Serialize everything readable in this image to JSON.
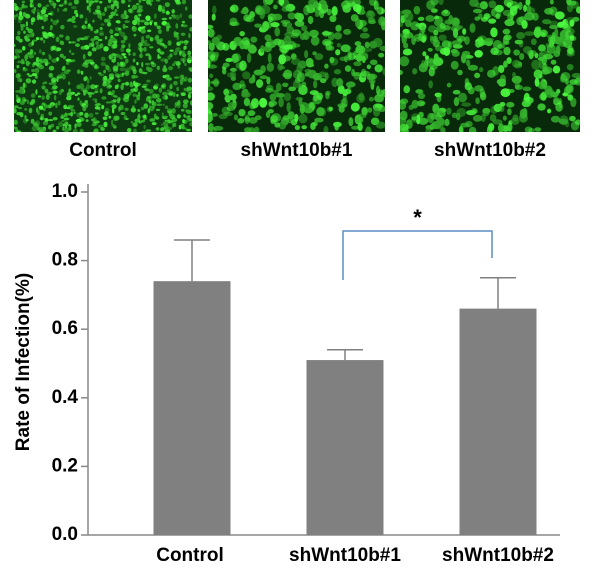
{
  "images": [
    {
      "label": "Control"
    },
    {
      "label": "shWnt10b#1"
    },
    {
      "label": "shWnt10b#2"
    }
  ],
  "chart_data": {
    "type": "bar",
    "ylabel": "Rate of Infection(%)",
    "categories": [
      "Control",
      "shWnt10b#1",
      "shWnt10b#2"
    ],
    "values": [
      0.74,
      0.51,
      0.66
    ],
    "errors": [
      0.12,
      0.03,
      0.09
    ],
    "color": "#808080",
    "ylim": [
      0,
      1.0
    ],
    "yticks": [
      {
        "value": 0,
        "label": "0.0"
      },
      {
        "value": 0.2,
        "label": "0.2"
      },
      {
        "value": 0.4,
        "label": "0.4"
      },
      {
        "value": 0.6,
        "label": "0.6"
      },
      {
        "value": 0.8,
        "label": "0.8"
      },
      {
        "value": 1.0,
        "label": "1.0"
      }
    ],
    "annotation": "*"
  }
}
